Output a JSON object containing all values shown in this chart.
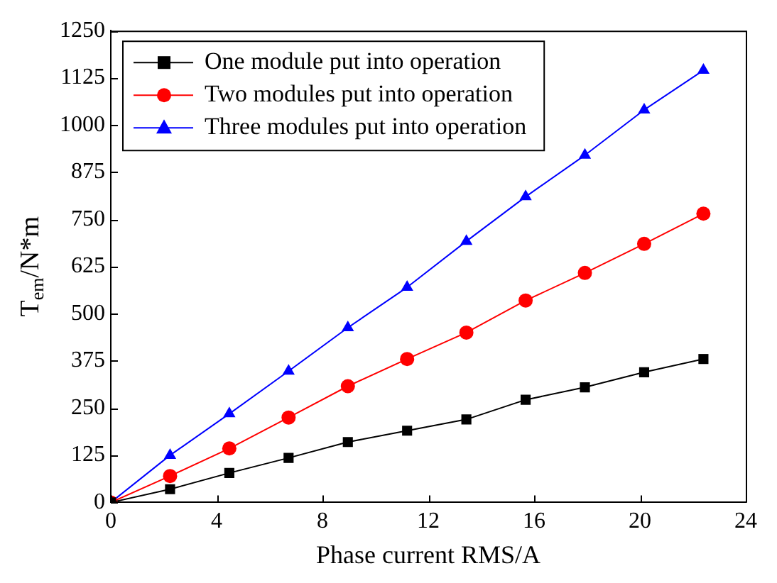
{
  "chart_data": {
    "type": "line",
    "xlabel": "Phase current RMS/A",
    "ylabel": "T$_{em}$/N*m",
    "x": [
      0,
      2.24,
      4.48,
      6.72,
      8.96,
      11.2,
      13.44,
      15.68,
      17.92,
      20.16,
      22.4
    ],
    "series": [
      {
        "name": "One module put into operation",
        "color": "#000000",
        "marker": "square",
        "values": [
          0,
          35,
          78,
          118,
          160,
          190,
          220,
          272,
          305,
          345,
          380
        ]
      },
      {
        "name": "Two modules put into operation",
        "color": "#ff0000",
        "marker": "circle",
        "values": [
          0,
          70,
          143,
          225,
          308,
          380,
          450,
          535,
          608,
          685,
          765
        ]
      },
      {
        "name": "Three modules put into operation",
        "color": "#0000ff",
        "marker": "triangle",
        "values": [
          0,
          125,
          235,
          348,
          463,
          570,
          692,
          810,
          920,
          1040,
          1145
        ]
      }
    ],
    "xlim": [
      0,
      24
    ],
    "xticks": [
      0,
      4,
      8,
      12,
      16,
      20,
      24
    ],
    "ylim": [
      0,
      1250
    ],
    "yticks": [
      0,
      125,
      250,
      375,
      500,
      625,
      750,
      875,
      1000,
      1125,
      1250
    ],
    "grid": false,
    "legend": "top left",
    "line_style": "solid"
  }
}
